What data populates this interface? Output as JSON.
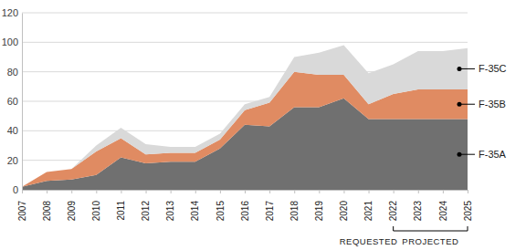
{
  "chart_data": {
    "type": "area",
    "stacked": true,
    "categories": [
      "2007",
      "2008",
      "2009",
      "2010",
      "2011",
      "2012",
      "2013",
      "2014",
      "2015",
      "2016",
      "2017",
      "2018",
      "2019",
      "2020",
      "2021",
      "2022",
      "2023",
      "2024",
      "2025"
    ],
    "series": [
      {
        "name": "F-35A",
        "color": "#707070",
        "values": [
          2,
          6,
          7,
          10,
          22,
          18,
          19,
          19,
          28,
          44,
          43,
          56,
          56,
          62,
          48,
          48,
          48,
          48,
          48
        ]
      },
      {
        "name": "F-35B",
        "color": "#e08b62",
        "values": [
          0,
          6,
          7,
          16,
          13,
          6,
          6,
          6,
          6,
          10,
          16,
          24,
          22,
          16,
          10,
          17,
          20,
          20,
          20
        ]
      },
      {
        "name": "F-35C",
        "color": "#d9d9d9",
        "values": [
          0,
          0,
          0,
          4,
          7,
          7,
          4,
          4,
          4,
          4,
          4,
          10,
          15,
          20,
          21,
          20,
          26,
          26,
          28
        ]
      }
    ],
    "ylim": [
      0,
      120
    ],
    "yticks": [
      0,
      20,
      40,
      60,
      80,
      100,
      120
    ],
    "grid": true,
    "annotations": [
      {
        "text": "REQUESTED",
        "x": "2021"
      },
      {
        "text": "PROJECTED",
        "x": [
          "2022",
          "2025"
        ]
      }
    ]
  }
}
